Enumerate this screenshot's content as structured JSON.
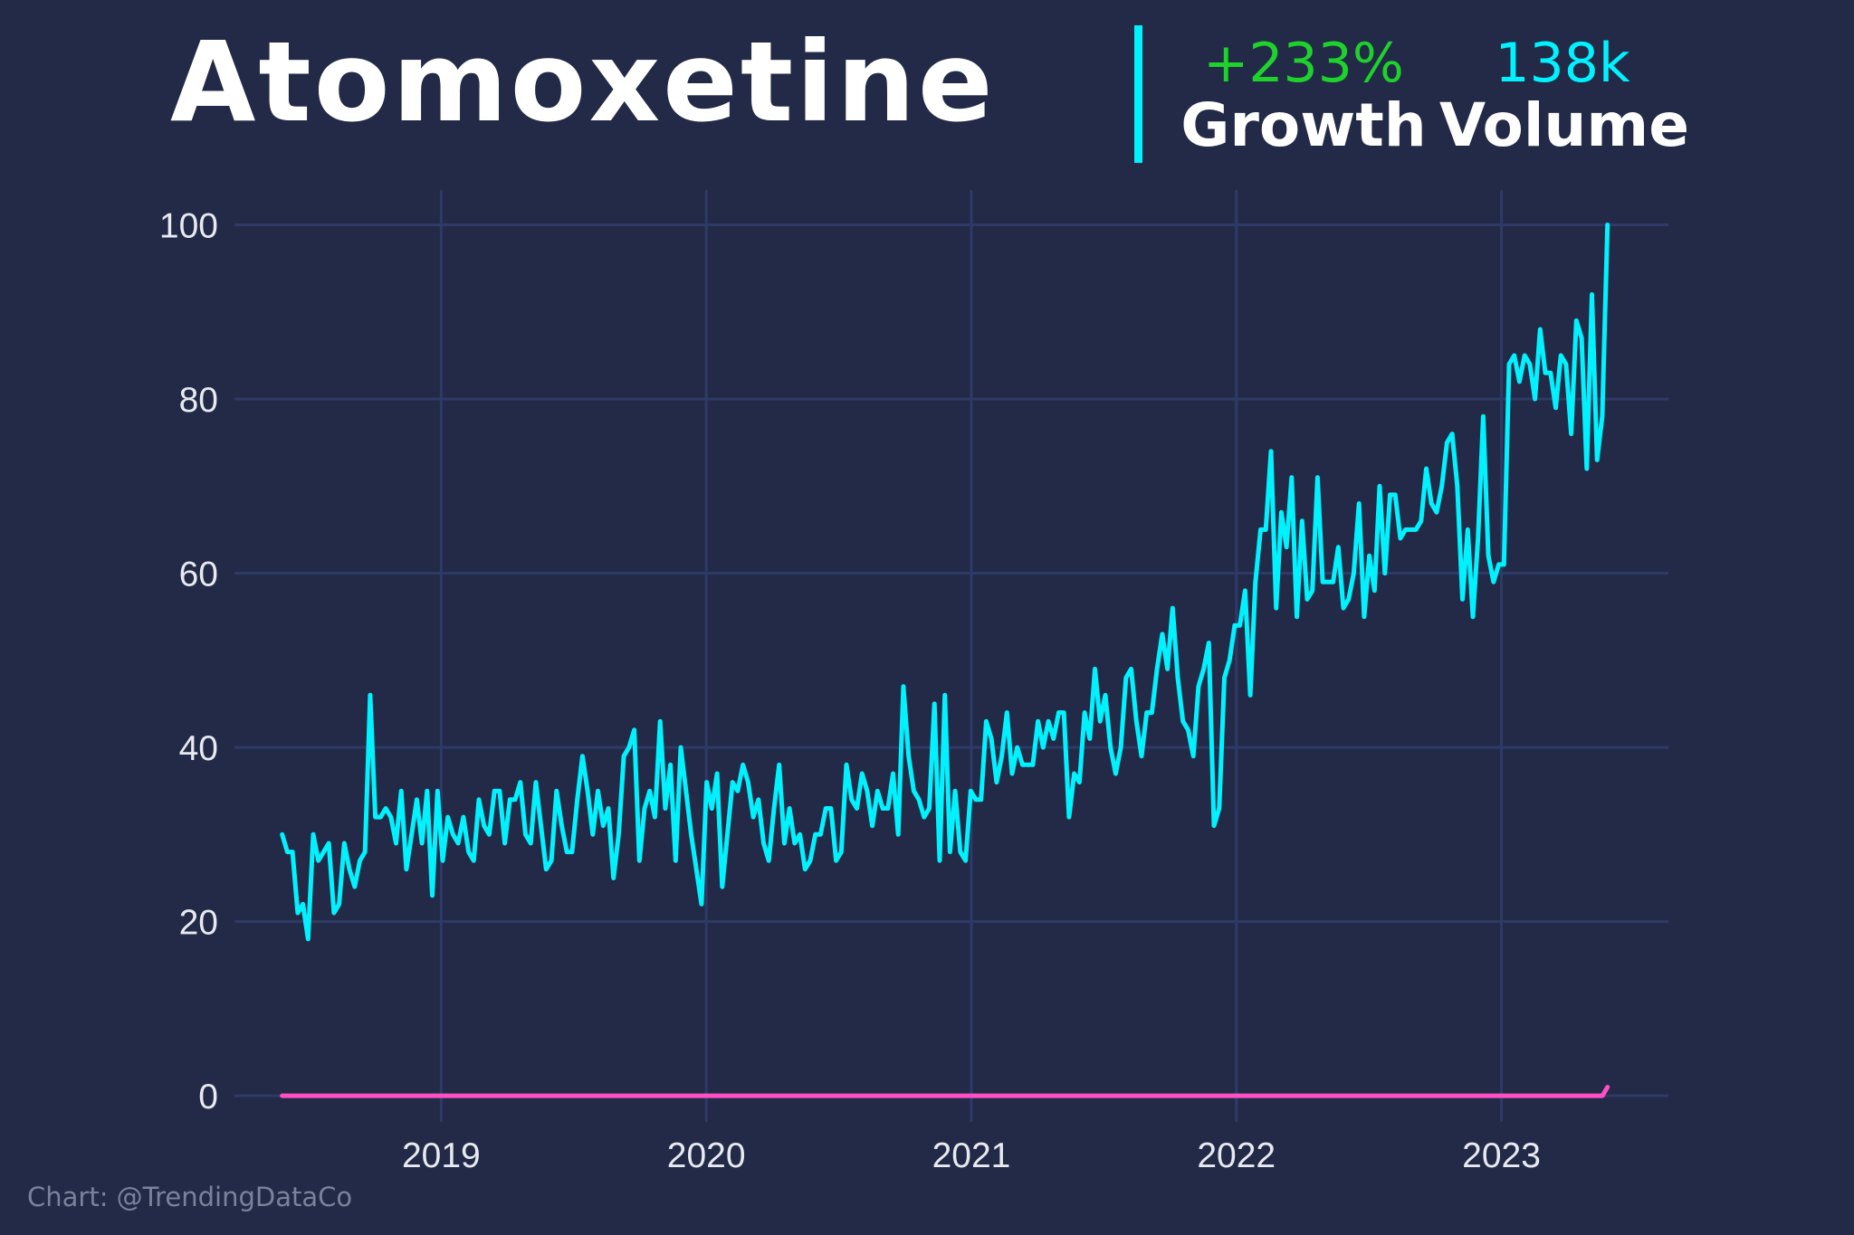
{
  "title": "Atomoxetine",
  "stats": {
    "growth_value": "+233%",
    "growth_label": "Growth",
    "volume_value": "138k",
    "volume_label": "Volume"
  },
  "credit": "Chart: @TrendingDataCo",
  "colors": {
    "background": "#222a48",
    "grid": "#2f3a66",
    "series_main": "#00f2ff",
    "series_baseline": "#ff4fc3",
    "growth": "#1fd12b",
    "volume": "#00f2ff",
    "axis_text": "#e8eaf0"
  },
  "chart_data": {
    "type": "line",
    "x_ticks": [
      "2019",
      "2020",
      "2021",
      "2022",
      "2023"
    ],
    "y_ticks": [
      0,
      20,
      40,
      60,
      80,
      100
    ],
    "ylim": [
      -3,
      104
    ],
    "xlim": [
      2018.22,
      2023.63
    ],
    "grid": true,
    "series": [
      {
        "color": "#00f2ff",
        "x_start": 2018.4,
        "x_end": 2023.4,
        "values": [
          30,
          28,
          28,
          21,
          22,
          18,
          30,
          27,
          28,
          29,
          21,
          22,
          29,
          26,
          24,
          27,
          28,
          46,
          32,
          32,
          33,
          32,
          29,
          35,
          26,
          30,
          34,
          29,
          35,
          23,
          35,
          27,
          32,
          30,
          29,
          32,
          28,
          27,
          34,
          31,
          30,
          35,
          35,
          29,
          34,
          34,
          36,
          30,
          29,
          36,
          31,
          26,
          27,
          35,
          31,
          28,
          28,
          34,
          39,
          35,
          30,
          35,
          31,
          33,
          25,
          30,
          39,
          40,
          42,
          27,
          33,
          35,
          32,
          43,
          33,
          38,
          27,
          40,
          35,
          30,
          26,
          22,
          36,
          33,
          37,
          24,
          30,
          36,
          35,
          38,
          36,
          32,
          34,
          29,
          27,
          33,
          38,
          29,
          33,
          29,
          30,
          26,
          27,
          30,
          30,
          33,
          33,
          27,
          28,
          38,
          34,
          33,
          37,
          35,
          31,
          35,
          33,
          33,
          37,
          30,
          47,
          39,
          35,
          34,
          32,
          33,
          45,
          27,
          46,
          28,
          35,
          28,
          27,
          35,
          34,
          34,
          43,
          41,
          36,
          39,
          44,
          37,
          40,
          38,
          38,
          38,
          43,
          40,
          43,
          41,
          44,
          44,
          32,
          37,
          36,
          44,
          41,
          49,
          43,
          46,
          40,
          37,
          40,
          48,
          49,
          43,
          39,
          44,
          44,
          49,
          53,
          49,
          56,
          48,
          43,
          42,
          39,
          47,
          49,
          52,
          31,
          33,
          48,
          50,
          54,
          54,
          58,
          46,
          59,
          65,
          65,
          74,
          56,
          67,
          63,
          71,
          55,
          66,
          57,
          58,
          71,
          59,
          59,
          59,
          63,
          56,
          57,
          60,
          68,
          55,
          62,
          58,
          70,
          60,
          69,
          69,
          64,
          65,
          65,
          65,
          66,
          72,
          68,
          67,
          70,
          75,
          76,
          70,
          57,
          65,
          55,
          64,
          78,
          62,
          59,
          61,
          61,
          84,
          85,
          82,
          85,
          84,
          80,
          88,
          83,
          83,
          79,
          85,
          84,
          76,
          89,
          87,
          72,
          92,
          73,
          78,
          100
        ]
      },
      {
        "color": "#ff4fc3",
        "x_start": 2018.4,
        "x_end": 2023.4,
        "values": [
          0,
          0,
          0,
          0,
          0,
          0,
          0,
          0,
          0,
          0,
          0,
          0,
          0,
          0,
          0,
          0,
          0,
          0,
          0,
          0,
          0,
          0,
          0,
          0,
          0,
          0,
          0,
          0,
          0,
          0,
          0,
          0,
          0,
          0,
          0,
          0,
          0,
          0,
          0,
          0,
          0,
          0,
          0,
          0,
          0,
          0,
          0,
          0,
          0,
          0,
          0,
          0,
          0,
          0,
          0,
          0,
          0,
          0,
          0,
          0,
          0,
          0,
          0,
          0,
          0,
          0,
          0,
          0,
          0,
          0,
          0,
          0,
          0,
          0,
          0,
          0,
          0,
          0,
          0,
          0,
          0,
          0,
          0,
          0,
          0,
          0,
          0,
          0,
          0,
          0,
          0,
          0,
          0,
          0,
          0,
          0,
          0,
          0,
          0,
          0,
          0,
          0,
          0,
          0,
          0,
          0,
          0,
          0,
          0,
          0,
          0,
          0,
          0,
          0,
          0,
          0,
          0,
          0,
          0,
          0,
          0,
          0,
          0,
          0,
          0,
          0,
          0,
          0,
          0,
          0,
          0,
          0,
          0,
          0,
          0,
          0,
          0,
          0,
          0,
          0,
          0,
          0,
          0,
          0,
          0,
          0,
          0,
          0,
          0,
          0,
          0,
          0,
          0,
          0,
          0,
          0,
          0,
          0,
          0,
          0,
          0,
          0,
          0,
          0,
          0,
          0,
          0,
          0,
          0,
          0,
          0,
          0,
          0,
          0,
          0,
          0,
          0,
          0,
          0,
          0,
          0,
          0,
          0,
          0,
          0,
          0,
          0,
          0,
          0,
          0,
          0,
          0,
          0,
          0,
          0,
          0,
          0,
          0,
          0,
          0,
          0,
          0,
          0,
          0,
          0,
          0,
          0,
          0,
          0,
          0,
          0,
          0,
          0,
          0,
          0,
          0,
          0,
          0,
          0,
          0,
          0,
          0,
          0,
          0,
          0,
          0,
          0,
          0,
          0,
          0,
          0,
          0,
          0,
          0,
          0,
          0,
          0,
          0,
          0,
          0,
          0,
          0,
          0,
          0,
          0,
          0,
          0,
          0,
          0,
          0,
          0,
          0,
          0,
          0,
          0,
          0,
          0,
          0,
          0,
          0,
          0,
          0,
          0,
          0,
          1
        ]
      }
    ]
  }
}
